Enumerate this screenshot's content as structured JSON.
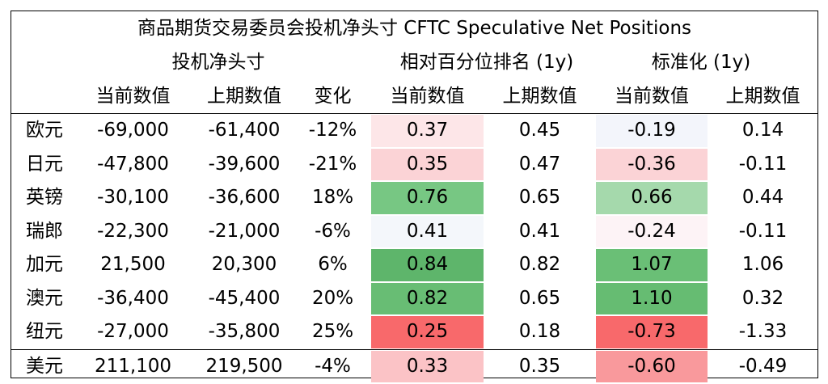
{
  "title": "商品期货交易委员会投机净头寸 CFTC Speculative Net Positions",
  "groups": {
    "net": "投机净头寸",
    "rank": "相对百分位排名 (1y)",
    "std": "标准化 (1y)"
  },
  "subheaders": [
    "当前数值",
    "上期数值",
    "变化",
    "当前数值",
    "上期数值",
    "当前数值",
    "上期数值"
  ],
  "rows": [
    {
      "name": "欧元",
      "cur": "-69,000",
      "prev": "-61,400",
      "chg": "-12%",
      "rank_cur": "0.37",
      "rank_prev": "0.45",
      "std_cur": "-0.19",
      "std_prev": "0.14",
      "rank_color": "#fde6e8",
      "std_color": "#f3f5fb"
    },
    {
      "name": "日元",
      "cur": "-47,800",
      "prev": "-39,600",
      "chg": "-21%",
      "rank_cur": "0.35",
      "rank_prev": "0.47",
      "std_cur": "-0.36",
      "std_prev": "-0.11",
      "rank_color": "#fbd3d6",
      "std_color": "#fbd3d6"
    },
    {
      "name": "英镑",
      "cur": "-30,100",
      "prev": "-36,600",
      "chg": "18%",
      "rank_cur": "0.76",
      "rank_prev": "0.65",
      "std_cur": "0.66",
      "std_prev": "0.44",
      "rank_color": "#77c783",
      "std_color": "#a5d9ac"
    },
    {
      "name": "瑞郎",
      "cur": "-22,300",
      "prev": "-21,000",
      "chg": "-6%",
      "rank_cur": "0.41",
      "rank_prev": "0.41",
      "std_cur": "-0.24",
      "std_prev": "-0.11",
      "rank_color": "#f4f7fb",
      "std_color": "#fdf3f6"
    },
    {
      "name": "加元",
      "cur": "21,500",
      "prev": "20,300",
      "chg": "6%",
      "rank_cur": "0.84",
      "rank_prev": "0.82",
      "std_cur": "1.07",
      "std_prev": "1.06",
      "rank_color": "#5eb56b",
      "std_color": "#6abf76"
    },
    {
      "name": "澳元",
      "cur": "-36,400",
      "prev": "-45,400",
      "chg": "20%",
      "rank_cur": "0.82",
      "rank_prev": "0.65",
      "std_cur": "1.10",
      "std_prev": "0.32",
      "rank_color": "#68bd74",
      "std_color": "#66bc72"
    },
    {
      "name": "纽元",
      "cur": "-27,000",
      "prev": "-35,800",
      "chg": "25%",
      "rank_cur": "0.25",
      "rank_prev": "0.18",
      "std_cur": "-0.73",
      "std_prev": "-1.33",
      "rank_color": "#f8696b",
      "std_color": "#f8696b"
    },
    {
      "name": "美元",
      "cur": "211,100",
      "prev": "219,500",
      "chg": "-4%",
      "rank_cur": "0.33",
      "rank_prev": "0.35",
      "std_cur": "-0.60",
      "std_prev": "-0.49",
      "rank_color": "#fbc3c6",
      "std_color": "#f9999c"
    }
  ]
}
